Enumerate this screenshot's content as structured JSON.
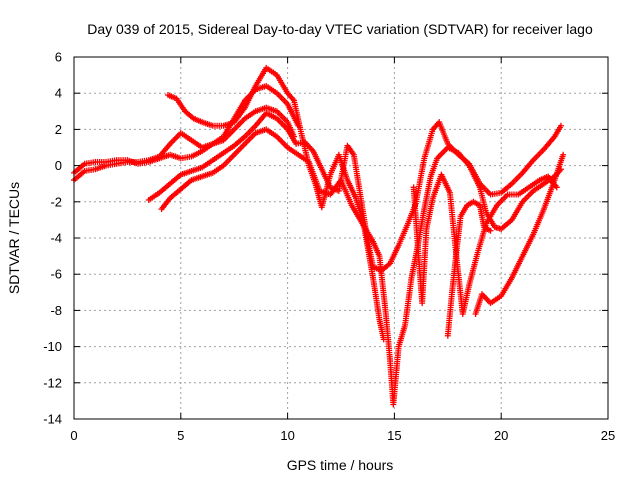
{
  "chart_data": {
    "type": "scatter",
    "title": "Day 039 of 2015, Sidereal Day-to-day VTEC variation (SDTVAR) for receiver lago",
    "xlabel": "GPS time / hours",
    "ylabel": "SDTVAR / TECUs",
    "xlim": [
      0,
      25
    ],
    "ylim": [
      -14,
      6
    ],
    "xticks": [
      0,
      5,
      10,
      15,
      20,
      25
    ],
    "yticks": [
      -14,
      -12,
      -10,
      -8,
      -6,
      -4,
      -2,
      0,
      2,
      4,
      6
    ],
    "grid": true,
    "marker": "plus",
    "color": "#ff0000",
    "series": [
      {
        "points": [
          [
            0,
            -0.8
          ],
          [
            0.5,
            -0.3
          ],
          [
            1,
            -0.2
          ],
          [
            1.5,
            0
          ],
          [
            2,
            0.1
          ],
          [
            2.5,
            0.2
          ],
          [
            3,
            0.2
          ],
          [
            3.5,
            0.3
          ],
          [
            4,
            0.5
          ],
          [
            4.5,
            1.2
          ],
          [
            5,
            1.8
          ],
          [
            5.5,
            1.4
          ],
          [
            6,
            1.0
          ],
          [
            6.5,
            1.2
          ],
          [
            7,
            1.4
          ],
          [
            7.5,
            2.0
          ],
          [
            8,
            2.6
          ],
          [
            8.5,
            3.0
          ],
          [
            9,
            3.2
          ],
          [
            9.5,
            3.0
          ],
          [
            10,
            2.4
          ],
          [
            10.3,
            1.6
          ]
        ]
      },
      {
        "points": [
          [
            0,
            -0.4
          ],
          [
            0.5,
            0.1
          ],
          [
            1,
            0.2
          ],
          [
            1.5,
            0.2
          ],
          [
            2,
            0.3
          ],
          [
            2.5,
            0.3
          ],
          [
            3,
            0.1
          ],
          [
            3.5,
            0.2
          ],
          [
            4,
            0.4
          ],
          [
            4.5,
            0.6
          ],
          [
            5,
            0.4
          ],
          [
            5.5,
            0.5
          ],
          [
            6,
            0.8
          ],
          [
            6.5,
            1.2
          ],
          [
            7,
            1.6
          ],
          [
            7.5,
            2.6
          ],
          [
            8,
            3.6
          ],
          [
            8.5,
            4.2
          ],
          [
            9,
            4.4
          ],
          [
            9.5,
            4.0
          ],
          [
            10,
            3.4
          ],
          [
            10.5,
            2.2
          ]
        ]
      },
      {
        "points": [
          [
            4.4,
            3.9
          ],
          [
            4.8,
            3.7
          ],
          [
            5.2,
            3.0
          ],
          [
            5.6,
            2.6
          ],
          [
            6,
            2.4
          ],
          [
            6.5,
            2.2
          ],
          [
            7,
            2.2
          ],
          [
            7.5,
            2.4
          ],
          [
            8,
            3.2
          ],
          [
            8.5,
            4.4
          ],
          [
            9,
            5.4
          ],
          [
            9.5,
            5.0
          ],
          [
            10,
            4.0
          ],
          [
            10.3,
            3.6
          ],
          [
            10.6,
            2.0
          ],
          [
            11,
            0
          ],
          [
            11.3,
            -1
          ],
          [
            11.6,
            -2.3
          ],
          [
            12,
            -0.5
          ],
          [
            12.4,
            0.6
          ],
          [
            12.8,
            -0.8
          ],
          [
            13.2,
            -1.8
          ],
          [
            13.6,
            -3.5
          ],
          [
            14,
            -6.2
          ],
          [
            14.3,
            -8.5
          ],
          [
            14.5,
            -9.6
          ]
        ]
      },
      {
        "points": [
          [
            3.5,
            -1.9
          ],
          [
            4,
            -1.5
          ],
          [
            4.5,
            -1.0
          ],
          [
            5,
            -0.5
          ],
          [
            5.5,
            -0.3
          ],
          [
            6,
            -0.1
          ],
          [
            6.5,
            0.3
          ],
          [
            7,
            0.7
          ],
          [
            7.5,
            1.1
          ],
          [
            8,
            1.6
          ],
          [
            8.5,
            2.2
          ],
          [
            9,
            2.9
          ],
          [
            9.5,
            2.6
          ],
          [
            10,
            2.0
          ],
          [
            10.4,
            1.2
          ],
          [
            10.8,
            1.3
          ],
          [
            11.2,
            0.8
          ],
          [
            11.6,
            -0.2
          ],
          [
            12,
            -1.2
          ],
          [
            12.4,
            -1.4
          ],
          [
            12.8,
            1.1
          ],
          [
            13.1,
            0.6
          ],
          [
            13.4,
            -1.6
          ],
          [
            13.7,
            -3.8
          ],
          [
            14,
            -5.6
          ],
          [
            14.4,
            -5.8
          ],
          [
            14.8,
            -5.4
          ],
          [
            15.2,
            -4.4
          ],
          [
            15.6,
            -3.3
          ],
          [
            16,
            -2.1
          ],
          [
            16.4,
            0.4
          ],
          [
            16.8,
            2.0
          ],
          [
            17.1,
            2.4
          ],
          [
            17.5,
            1.2
          ],
          [
            18,
            0.6
          ],
          [
            18.5,
            0.1
          ],
          [
            19,
            -1.0
          ],
          [
            19.5,
            -1.6
          ],
          [
            20,
            -1.5
          ],
          [
            20.5,
            -1.0
          ],
          [
            21,
            -0.4
          ],
          [
            21.5,
            0.3
          ],
          [
            22,
            0.9
          ],
          [
            22.5,
            1.6
          ],
          [
            22.8,
            2.2
          ]
        ]
      },
      {
        "points": [
          [
            4.1,
            -2.4
          ],
          [
            4.5,
            -1.8
          ],
          [
            5,
            -1.3
          ],
          [
            5.5,
            -0.8
          ],
          [
            6,
            -0.6
          ],
          [
            6.5,
            -0.4
          ],
          [
            7,
            0.0
          ],
          [
            7.5,
            0.6
          ],
          [
            8,
            1.2
          ],
          [
            8.5,
            1.8
          ],
          [
            9,
            2.0
          ],
          [
            9.5,
            1.6
          ],
          [
            10,
            1.0
          ],
          [
            10.5,
            0.6
          ],
          [
            11,
            0.2
          ],
          [
            11.5,
            -1.4
          ],
          [
            12,
            -1.6
          ],
          [
            12.5,
            -0.8
          ],
          [
            13,
            -2.2
          ],
          [
            13.5,
            -3.2
          ],
          [
            14,
            -4.2
          ],
          [
            14.3,
            -5.0
          ],
          [
            14.6,
            -8.2
          ],
          [
            14.8,
            -10.8
          ],
          [
            14.95,
            -13.2
          ],
          [
            15.2,
            -10
          ],
          [
            15.5,
            -8.8
          ],
          [
            15.8,
            -6.2
          ],
          [
            16.1,
            -4.4
          ],
          [
            16.4,
            -2.4
          ],
          [
            16.7,
            -0.6
          ],
          [
            17,
            0.4
          ],
          [
            17.5,
            1.0
          ],
          [
            18,
            0.7
          ],
          [
            18.5,
            0.0
          ],
          [
            19,
            -1.2
          ],
          [
            19.3,
            -2.6
          ],
          [
            19.7,
            -3.4
          ],
          [
            20,
            -3.5
          ],
          [
            20.5,
            -3.0
          ],
          [
            21,
            -2.0
          ],
          [
            21.5,
            -1.4
          ],
          [
            22,
            -1.0
          ],
          [
            22.5,
            -0.6
          ],
          [
            22.8,
            -0.2
          ]
        ]
      },
      {
        "points": [
          [
            15.9,
            -1.2
          ],
          [
            16.1,
            -4.5
          ],
          [
            16.3,
            -7.6
          ],
          [
            16.5,
            -3.5
          ],
          [
            16.8,
            -1.8
          ],
          [
            17.2,
            -0.5
          ],
          [
            17.6,
            -1.5
          ],
          [
            17.9,
            -5
          ],
          [
            18.2,
            -8.2
          ],
          [
            18.5,
            -6.6
          ],
          [
            18.9,
            -4.8
          ],
          [
            19.3,
            -3.2
          ],
          [
            19.8,
            -2.2
          ],
          [
            20.3,
            -1.6
          ],
          [
            20.8,
            -1.6
          ],
          [
            21.3,
            -1.2
          ],
          [
            21.8,
            -0.8
          ],
          [
            22.2,
            -0.6
          ],
          [
            22.6,
            -1.2
          ]
        ]
      },
      {
        "points": [
          [
            17.5,
            -9.4
          ],
          [
            17.7,
            -7
          ],
          [
            17.9,
            -4.8
          ],
          [
            18.1,
            -2.8
          ],
          [
            18.4,
            -2.2
          ],
          [
            18.7,
            -2.0
          ],
          [
            19,
            -2.2
          ],
          [
            19.2,
            -3.4
          ],
          [
            19.5,
            -3.6
          ]
        ]
      },
      {
        "points": [
          [
            18.8,
            -8.2
          ],
          [
            19.1,
            -7.1
          ],
          [
            19.5,
            -7.6
          ],
          [
            20,
            -7.2
          ],
          [
            20.5,
            -6.2
          ],
          [
            21,
            -5.0
          ],
          [
            21.5,
            -3.8
          ],
          [
            22,
            -2.4
          ],
          [
            22.5,
            -0.8
          ],
          [
            22.9,
            0.6
          ]
        ]
      }
    ]
  }
}
